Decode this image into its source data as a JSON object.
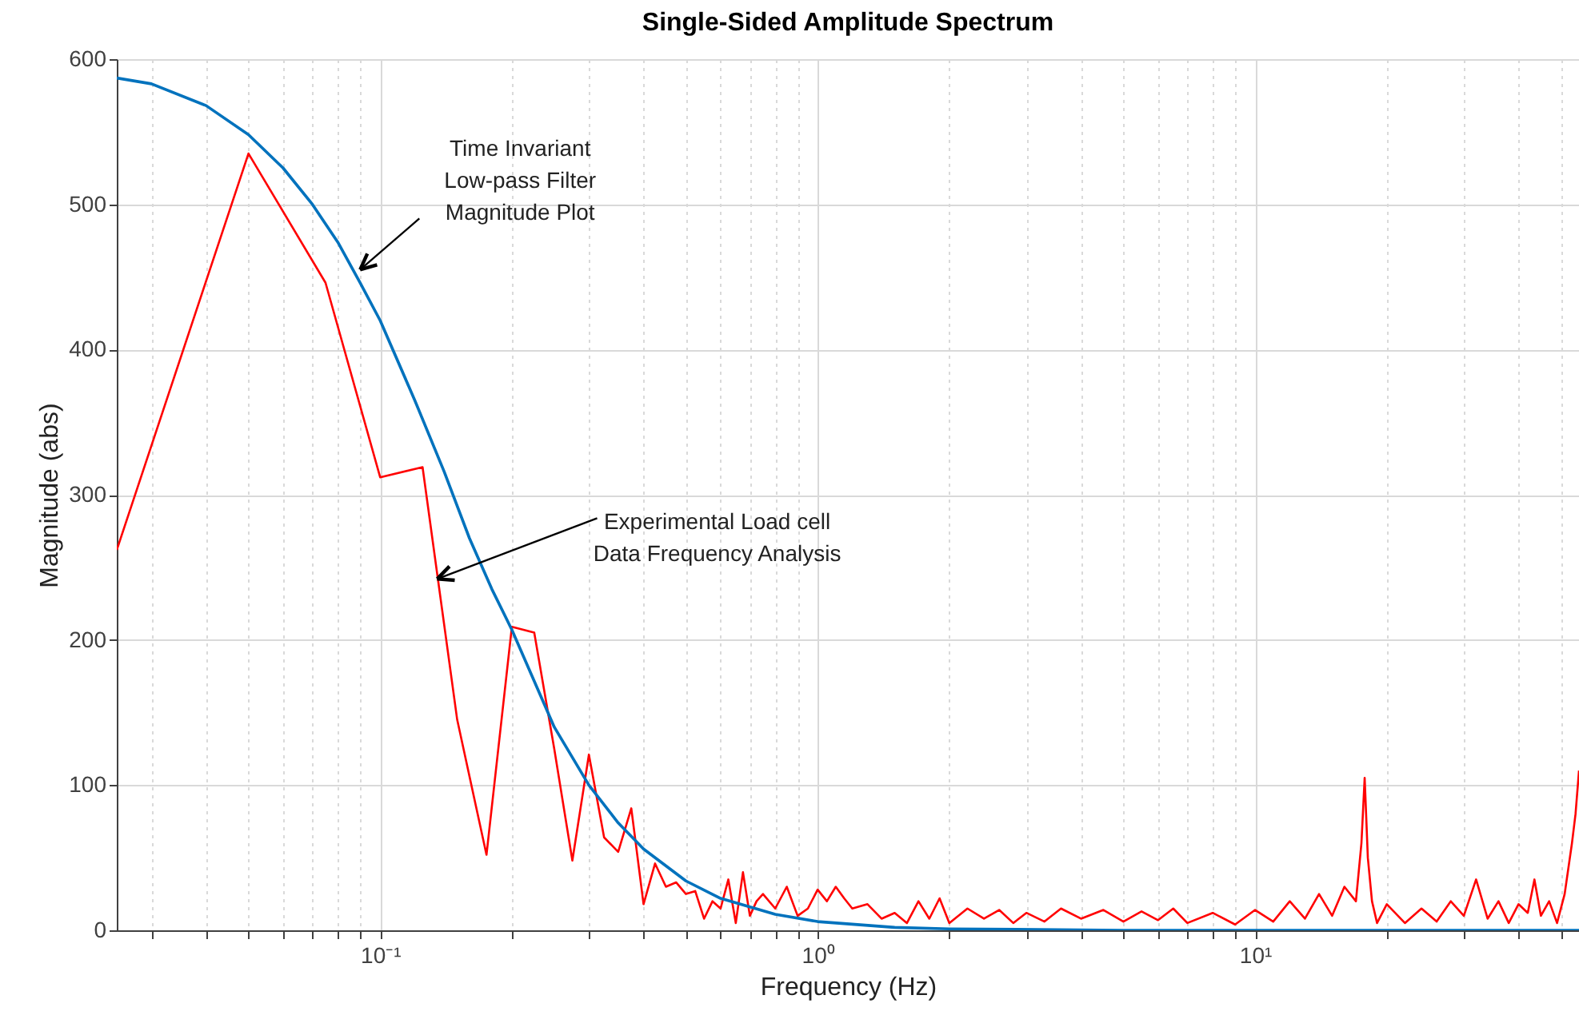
{
  "chart_data": {
    "type": "line",
    "title": "Single-Sided Amplitude Spectrum",
    "xlabel": "Frequency  (Hz)",
    "ylabel": "Magnitude (abs)",
    "log": "x",
    "grid": true,
    "line_style": "solid",
    "marker": "none",
    "xlim": [
      0.025,
      55
    ],
    "ylim": [
      0,
      600
    ],
    "yticks": [
      0,
      100,
      200,
      300,
      400,
      500,
      600
    ],
    "xticks": [
      {
        "value": 0.03,
        "label": null
      },
      {
        "value": 0.04,
        "label": null
      },
      {
        "value": 0.05,
        "label": null
      },
      {
        "value": 0.06,
        "label": null
      },
      {
        "value": 0.07,
        "label": null
      },
      {
        "value": 0.08,
        "label": null
      },
      {
        "value": 0.09,
        "label": null
      },
      {
        "value": 0.1,
        "label": "10⁻¹"
      },
      {
        "value": 0.2,
        "label": null
      },
      {
        "value": 0.3,
        "label": null
      },
      {
        "value": 0.4,
        "label": null
      },
      {
        "value": 0.5,
        "label": null
      },
      {
        "value": 0.6,
        "label": null
      },
      {
        "value": 0.7,
        "label": null
      },
      {
        "value": 0.8,
        "label": null
      },
      {
        "value": 0.9,
        "label": null
      },
      {
        "value": 1,
        "label": "10⁰"
      },
      {
        "value": 2,
        "label": null
      },
      {
        "value": 3,
        "label": null
      },
      {
        "value": 4,
        "label": null
      },
      {
        "value": 5,
        "label": null
      },
      {
        "value": 6,
        "label": null
      },
      {
        "value": 7,
        "label": null
      },
      {
        "value": 8,
        "label": null
      },
      {
        "value": 9,
        "label": null
      },
      {
        "value": 10,
        "label": "10¹"
      },
      {
        "value": 20,
        "label": null
      },
      {
        "value": 30,
        "label": null
      },
      {
        "value": 40,
        "label": null
      },
      {
        "value": 50,
        "label": null
      }
    ],
    "series": [
      {
        "color": "#ff0000",
        "x": [
          0.025,
          0.05,
          0.075,
          0.1,
          0.125,
          0.15,
          0.175,
          0.2,
          0.225,
          0.25,
          0.275,
          0.3,
          0.325,
          0.35,
          0.375,
          0.4,
          0.425,
          0.45,
          0.475,
          0.5,
          0.525,
          0.55,
          0.575,
          0.6,
          0.625,
          0.65,
          0.675,
          0.7,
          0.725,
          0.75,
          0.8,
          0.85,
          0.9,
          0.95,
          1.0,
          1.05,
          1.1,
          1.15,
          1.2,
          1.3,
          1.4,
          1.5,
          1.6,
          1.7,
          1.8,
          1.9,
          2.0,
          2.2,
          2.4,
          2.6,
          2.8,
          3.0,
          3.3,
          3.6,
          4.0,
          4.5,
          5,
          5.5,
          6,
          6.5,
          7,
          8,
          9,
          10,
          11,
          12,
          13,
          14,
          15,
          16,
          17,
          17.5,
          17.8,
          18.1,
          18.5,
          19,
          20,
          22,
          24,
          26,
          28,
          30,
          32,
          34,
          36,
          38,
          40,
          42,
          43.5,
          45,
          47,
          49,
          51,
          53,
          54,
          55
        ],
        "values": [
          262,
          535,
          446,
          312,
          319,
          145,
          52,
          209,
          205,
          125,
          48,
          121,
          64,
          54,
          84,
          18,
          46,
          30,
          33,
          25,
          27,
          8,
          20,
          15,
          35,
          5,
          40,
          10,
          20,
          25,
          15,
          30,
          10,
          15,
          28,
          20,
          30,
          22,
          15,
          18,
          8,
          12,
          5,
          20,
          8,
          22,
          5,
          15,
          8,
          14,
          5,
          12,
          6,
          15,
          8,
          14,
          6,
          13,
          7,
          15,
          5,
          12,
          4,
          14,
          6,
          20,
          8,
          25,
          10,
          30,
          20,
          60,
          105,
          50,
          20,
          5,
          18,
          5,
          15,
          6,
          20,
          10,
          35,
          8,
          20,
          5,
          18,
          12,
          35,
          10,
          20,
          5,
          25,
          60,
          80,
          110
        ]
      },
      {
        "color": "#0072bd",
        "x": [
          0.025,
          0.03,
          0.04,
          0.05,
          0.06,
          0.07,
          0.08,
          0.09,
          0.1,
          0.12,
          0.14,
          0.16,
          0.18,
          0.2,
          0.25,
          0.3,
          0.35,
          0.4,
          0.5,
          0.6,
          0.8,
          1.0,
          1.5,
          2,
          5,
          55
        ],
        "values": [
          587,
          583,
          568,
          548,
          525,
          500,
          474,
          446,
          420,
          365,
          316,
          270,
          235,
          207,
          140,
          100,
          74,
          56,
          34,
          22,
          11,
          6,
          2,
          1,
          0,
          0
        ]
      }
    ],
    "annotations": [
      {
        "text": "Time Invariant\nLow-pass Filter\nMagnitude Plot",
        "x": 0.09,
        "y": 455
      },
      {
        "text": "Experimental Load cell\nData Frequency Analysis",
        "x": 0.135,
        "y": 242
      }
    ]
  }
}
